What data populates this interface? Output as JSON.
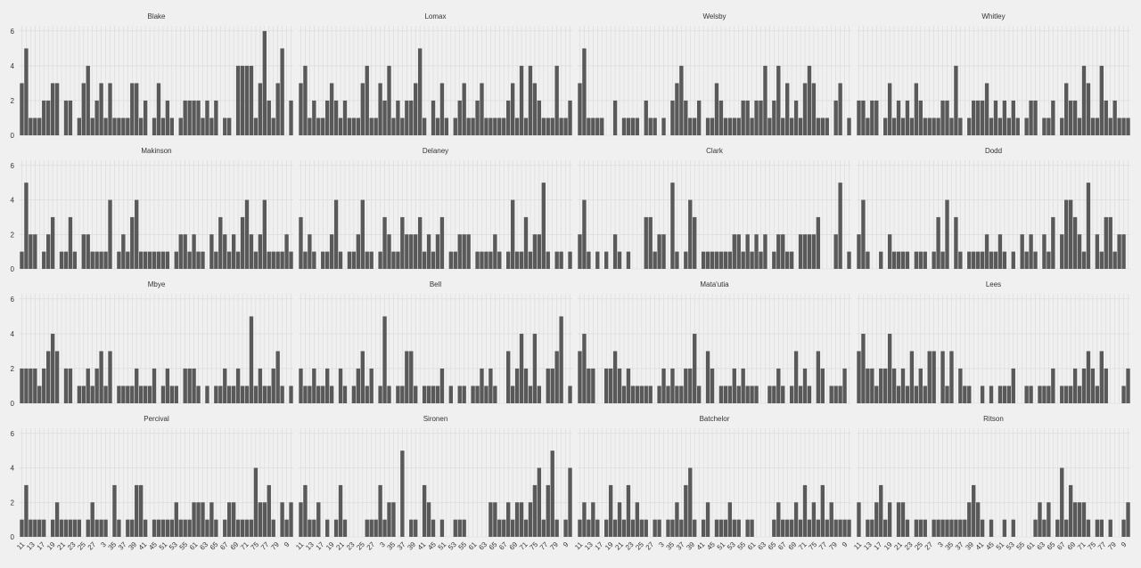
{
  "chart_data": {
    "type": "bar",
    "facet_layout": "4x4 grid of small multiples",
    "grid": true,
    "ylim": [
      0,
      6.3
    ],
    "yticks": [
      0,
      2,
      4,
      6
    ],
    "xticks_bottom_row": [
      "11",
      "13",
      "17",
      "19",
      "21",
      "23",
      "25",
      "27",
      "3",
      "35",
      "37",
      "39",
      "41",
      "45",
      "51",
      "53",
      "55",
      "61",
      "63",
      "65",
      "67",
      "69",
      "71",
      "75",
      "77",
      "79",
      "9"
    ],
    "bar_color": "#595959",
    "background": "#f0f0f0",
    "facets": [
      {
        "name": "Blake",
        "values": [
          3,
          5,
          1,
          1,
          1,
          2,
          2,
          3,
          3,
          0,
          2,
          2,
          0,
          1,
          3,
          4,
          1,
          2,
          3,
          1,
          3,
          1,
          1,
          1,
          1,
          3,
          3,
          1,
          2,
          0,
          1,
          3,
          1,
          2,
          1,
          0,
          1,
          2,
          2,
          2,
          2,
          1,
          2,
          1,
          2,
          0,
          1,
          1,
          0,
          4,
          4,
          4,
          4,
          1,
          3,
          6,
          2,
          1,
          3,
          5,
          0,
          2
        ]
      },
      {
        "name": "Lomax",
        "values": [
          3,
          4,
          1,
          2,
          1,
          1,
          2,
          3,
          2,
          1,
          2,
          1,
          1,
          1,
          3,
          4,
          1,
          1,
          3,
          2,
          4,
          1,
          2,
          1,
          2,
          2,
          3,
          5,
          1,
          0,
          2,
          1,
          3,
          1,
          0,
          1,
          2,
          3,
          1,
          1,
          2,
          3,
          1,
          1,
          1,
          1,
          1,
          2,
          3,
          1,
          4,
          1,
          4,
          3,
          2,
          1,
          1,
          1,
          4,
          1,
          1,
          2
        ]
      },
      {
        "name": "Welsby",
        "values": [
          3,
          5,
          1,
          1,
          1,
          1,
          0,
          0,
          2,
          0,
          1,
          1,
          1,
          1,
          0,
          2,
          1,
          1,
          0,
          1,
          0,
          2,
          3,
          4,
          2,
          1,
          1,
          2,
          0,
          1,
          1,
          3,
          2,
          1,
          1,
          1,
          1,
          2,
          2,
          1,
          2,
          2,
          4,
          1,
          2,
          4,
          1,
          3,
          1,
          2,
          1,
          3,
          4,
          3,
          1,
          1,
          1,
          0,
          2,
          3,
          0,
          1
        ]
      },
      {
        "name": "Whitley",
        "values": [
          2,
          2,
          1,
          2,
          2,
          0,
          1,
          3,
          1,
          2,
          1,
          2,
          1,
          3,
          2,
          1,
          1,
          1,
          1,
          2,
          2,
          1,
          4,
          1,
          0,
          1,
          2,
          2,
          2,
          3,
          1,
          2,
          1,
          2,
          1,
          2,
          1,
          0,
          1,
          2,
          2,
          0,
          1,
          1,
          2,
          0,
          1,
          3,
          2,
          2,
          1,
          4,
          3,
          1,
          1,
          4,
          2,
          1,
          2,
          1,
          1,
          1
        ]
      },
      {
        "name": "Makinson",
        "values": [
          1,
          5,
          2,
          2,
          0,
          1,
          2,
          3,
          0,
          1,
          1,
          3,
          1,
          0,
          2,
          2,
          1,
          1,
          1,
          1,
          4,
          0,
          1,
          2,
          1,
          3,
          4,
          1,
          1,
          1,
          1,
          1,
          1,
          1,
          0,
          1,
          2,
          2,
          1,
          2,
          1,
          1,
          0,
          2,
          1,
          3,
          2,
          1,
          2,
          1,
          3,
          4,
          2,
          1,
          2,
          4,
          1,
          1,
          1,
          1,
          2,
          1
        ]
      },
      {
        "name": "Delaney",
        "values": [
          3,
          1,
          2,
          1,
          0,
          1,
          1,
          2,
          4,
          1,
          0,
          1,
          1,
          2,
          4,
          1,
          1,
          0,
          1,
          3,
          2,
          1,
          1,
          3,
          2,
          2,
          2,
          3,
          1,
          2,
          1,
          2,
          3,
          0,
          1,
          1,
          2,
          2,
          2,
          0,
          1,
          1,
          1,
          1,
          2,
          1,
          0,
          1,
          4,
          1,
          1,
          3,
          1,
          2,
          2,
          5,
          1,
          0,
          1,
          1,
          0,
          1
        ]
      },
      {
        "name": "Clark",
        "values": [
          2,
          4,
          1,
          0,
          1,
          0,
          1,
          0,
          2,
          1,
          0,
          1,
          0,
          0,
          0,
          3,
          3,
          1,
          2,
          2,
          0,
          5,
          1,
          0,
          1,
          4,
          3,
          0,
          1,
          1,
          1,
          1,
          1,
          1,
          1,
          2,
          2,
          1,
          2,
          1,
          2,
          1,
          2,
          0,
          1,
          2,
          2,
          1,
          1,
          0,
          2,
          2,
          2,
          2,
          3,
          0,
          0,
          0,
          2,
          5,
          0,
          1
        ]
      },
      {
        "name": "Dodd",
        "values": [
          2,
          4,
          1,
          0,
          0,
          1,
          0,
          2,
          1,
          1,
          1,
          1,
          0,
          1,
          1,
          1,
          0,
          1,
          3,
          1,
          4,
          0,
          3,
          1,
          0,
          1,
          1,
          1,
          1,
          2,
          1,
          1,
          2,
          1,
          0,
          1,
          0,
          2,
          1,
          2,
          1,
          0,
          2,
          1,
          3,
          0,
          2,
          4,
          4,
          3,
          2,
          1,
          5,
          0,
          2,
          1,
          3,
          3,
          1,
          2,
          2,
          0
        ]
      },
      {
        "name": "Mbye",
        "values": [
          2,
          2,
          2,
          2,
          1,
          2,
          3,
          4,
          3,
          0,
          2,
          2,
          0,
          1,
          1,
          2,
          1,
          2,
          3,
          1,
          3,
          0,
          1,
          1,
          1,
          1,
          2,
          1,
          1,
          1,
          2,
          0,
          1,
          2,
          1,
          1,
          0,
          2,
          2,
          2,
          1,
          0,
          1,
          0,
          1,
          1,
          2,
          1,
          1,
          2,
          1,
          1,
          5,
          1,
          2,
          1,
          1,
          2,
          3,
          1,
          0,
          1
        ]
      },
      {
        "name": "Bell",
        "values": [
          2,
          1,
          1,
          2,
          1,
          1,
          2,
          1,
          0,
          2,
          1,
          0,
          1,
          2,
          3,
          1,
          2,
          0,
          1,
          5,
          1,
          0,
          1,
          1,
          3,
          3,
          1,
          0,
          1,
          1,
          1,
          1,
          2,
          0,
          1,
          0,
          1,
          1,
          0,
          1,
          1,
          2,
          1,
          2,
          1,
          0,
          0,
          3,
          1,
          2,
          4,
          2,
          1,
          4,
          1,
          0,
          2,
          2,
          3,
          5,
          0,
          1
        ]
      },
      {
        "name": "Mata'utia",
        "values": [
          3,
          4,
          2,
          2,
          0,
          0,
          2,
          2,
          3,
          2,
          1,
          2,
          1,
          1,
          1,
          1,
          1,
          0,
          1,
          2,
          1,
          2,
          1,
          1,
          2,
          2,
          4,
          1,
          0,
          3,
          2,
          0,
          1,
          1,
          1,
          2,
          1,
          2,
          1,
          1,
          1,
          0,
          0,
          1,
          1,
          2,
          1,
          0,
          1,
          3,
          1,
          2,
          1,
          0,
          3,
          2,
          0,
          1,
          1,
          1,
          2,
          0
        ]
      },
      {
        "name": "Lees",
        "values": [
          3,
          4,
          2,
          2,
          1,
          2,
          2,
          4,
          2,
          1,
          2,
          1,
          3,
          1,
          2,
          1,
          3,
          3,
          0,
          3,
          1,
          3,
          0,
          2,
          1,
          1,
          0,
          0,
          1,
          0,
          1,
          0,
          1,
          1,
          1,
          2,
          0,
          0,
          1,
          1,
          0,
          1,
          1,
          1,
          2,
          0,
          1,
          1,
          1,
          2,
          1,
          2,
          3,
          2,
          1,
          3,
          2,
          0,
          0,
          0,
          1,
          2
        ]
      },
      {
        "name": "Percival",
        "values": [
          1,
          3,
          1,
          1,
          1,
          1,
          0,
          1,
          2,
          1,
          1,
          1,
          1,
          1,
          0,
          1,
          2,
          1,
          1,
          1,
          0,
          3,
          1,
          0,
          1,
          1,
          3,
          3,
          1,
          0,
          1,
          1,
          1,
          1,
          1,
          2,
          1,
          1,
          1,
          2,
          2,
          2,
          1,
          2,
          1,
          0,
          1,
          2,
          2,
          1,
          1,
          1,
          1,
          4,
          2,
          2,
          3,
          1,
          0,
          2,
          1,
          2
        ]
      },
      {
        "name": "Sironen",
        "values": [
          2,
          3,
          1,
          1,
          2,
          0,
          1,
          0,
          1,
          3,
          1,
          0,
          0,
          0,
          0,
          1,
          1,
          1,
          3,
          1,
          2,
          2,
          0,
          5,
          0,
          1,
          1,
          0,
          3,
          2,
          1,
          0,
          1,
          0,
          0,
          1,
          1,
          1,
          0,
          0,
          0,
          0,
          0,
          2,
          2,
          1,
          1,
          2,
          1,
          2,
          2,
          1,
          2,
          3,
          4,
          1,
          3,
          5,
          1,
          0,
          1,
          4
        ]
      },
      {
        "name": "Batchelor",
        "values": [
          1,
          2,
          1,
          2,
          1,
          0,
          1,
          3,
          1,
          2,
          1,
          3,
          1,
          2,
          1,
          1,
          0,
          1,
          1,
          0,
          1,
          1,
          2,
          1,
          3,
          4,
          1,
          0,
          1,
          2,
          0,
          1,
          1,
          1,
          2,
          1,
          1,
          0,
          1,
          1,
          0,
          0,
          0,
          0,
          1,
          2,
          1,
          1,
          1,
          2,
          1,
          3,
          1,
          2,
          1,
          3,
          1,
          2,
          1,
          1,
          1,
          1
        ]
      },
      {
        "name": "Ritson",
        "values": [
          2,
          0,
          1,
          1,
          2,
          3,
          1,
          2,
          0,
          2,
          2,
          1,
          0,
          1,
          1,
          1,
          0,
          1,
          1,
          1,
          1,
          1,
          1,
          1,
          1,
          2,
          3,
          2,
          1,
          0,
          1,
          0,
          0,
          1,
          0,
          1,
          0,
          0,
          0,
          0,
          1,
          2,
          1,
          2,
          0,
          1,
          4,
          1,
          3,
          2,
          2,
          2,
          1,
          0,
          1,
          1,
          0,
          1,
          0,
          0,
          1,
          2
        ]
      }
    ]
  }
}
